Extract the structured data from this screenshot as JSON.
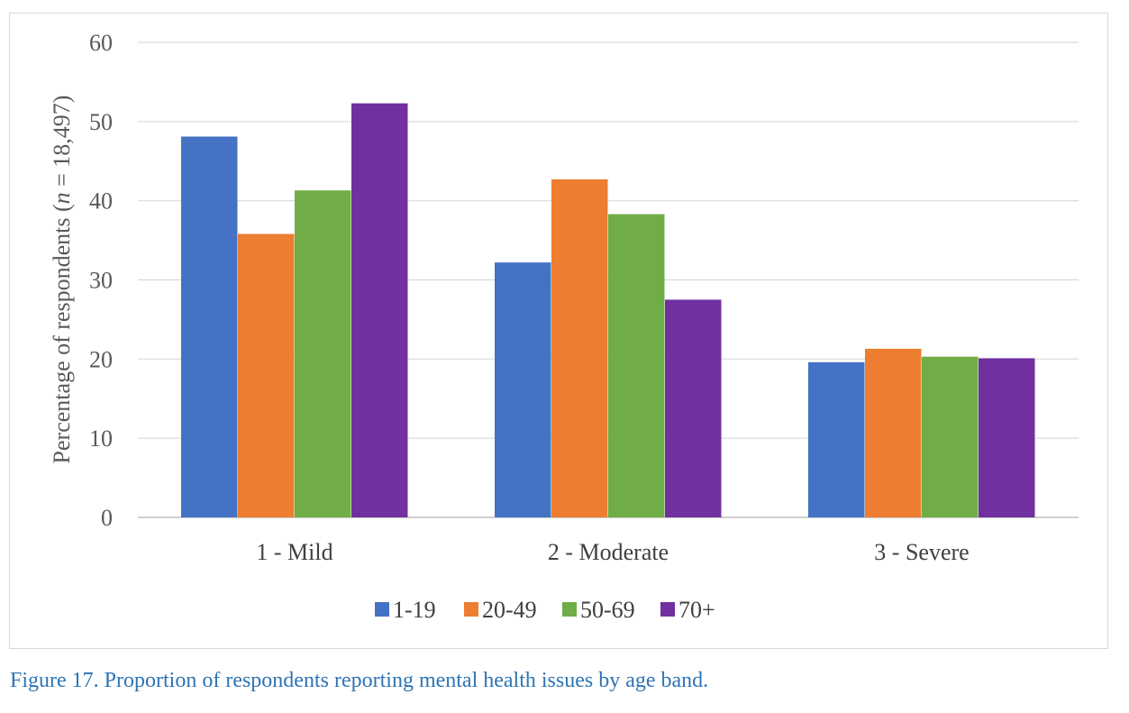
{
  "caption": "Figure 17. Proportion of respondents reporting mental health issues by age band.",
  "chart_data": {
    "type": "bar",
    "title": "",
    "xlabel": "",
    "ylabel_prefix": "Percentage of respondents (",
    "ylabel_italic": "n",
    "ylabel_suffix": " = 18,497)",
    "ylim": [
      0,
      60
    ],
    "yticks": [
      0,
      10,
      20,
      30,
      40,
      50,
      60
    ],
    "grid": true,
    "legend_position": "bottom",
    "categories": [
      "1 - Mild",
      "2 - Moderate",
      "3 - Severe"
    ],
    "series": [
      {
        "name": "1-19",
        "color": "#4472c4",
        "values": [
          48.1,
          32.2,
          19.6
        ]
      },
      {
        "name": "20-49",
        "color": "#ed7d31",
        "values": [
          35.8,
          42.7,
          21.3
        ]
      },
      {
        "name": "50-69",
        "color": "#70ad47",
        "values": [
          41.3,
          38.3,
          20.3
        ]
      },
      {
        "name": "70+",
        "color": "#7030a0",
        "values": [
          52.3,
          27.5,
          20.1
        ]
      }
    ]
  }
}
